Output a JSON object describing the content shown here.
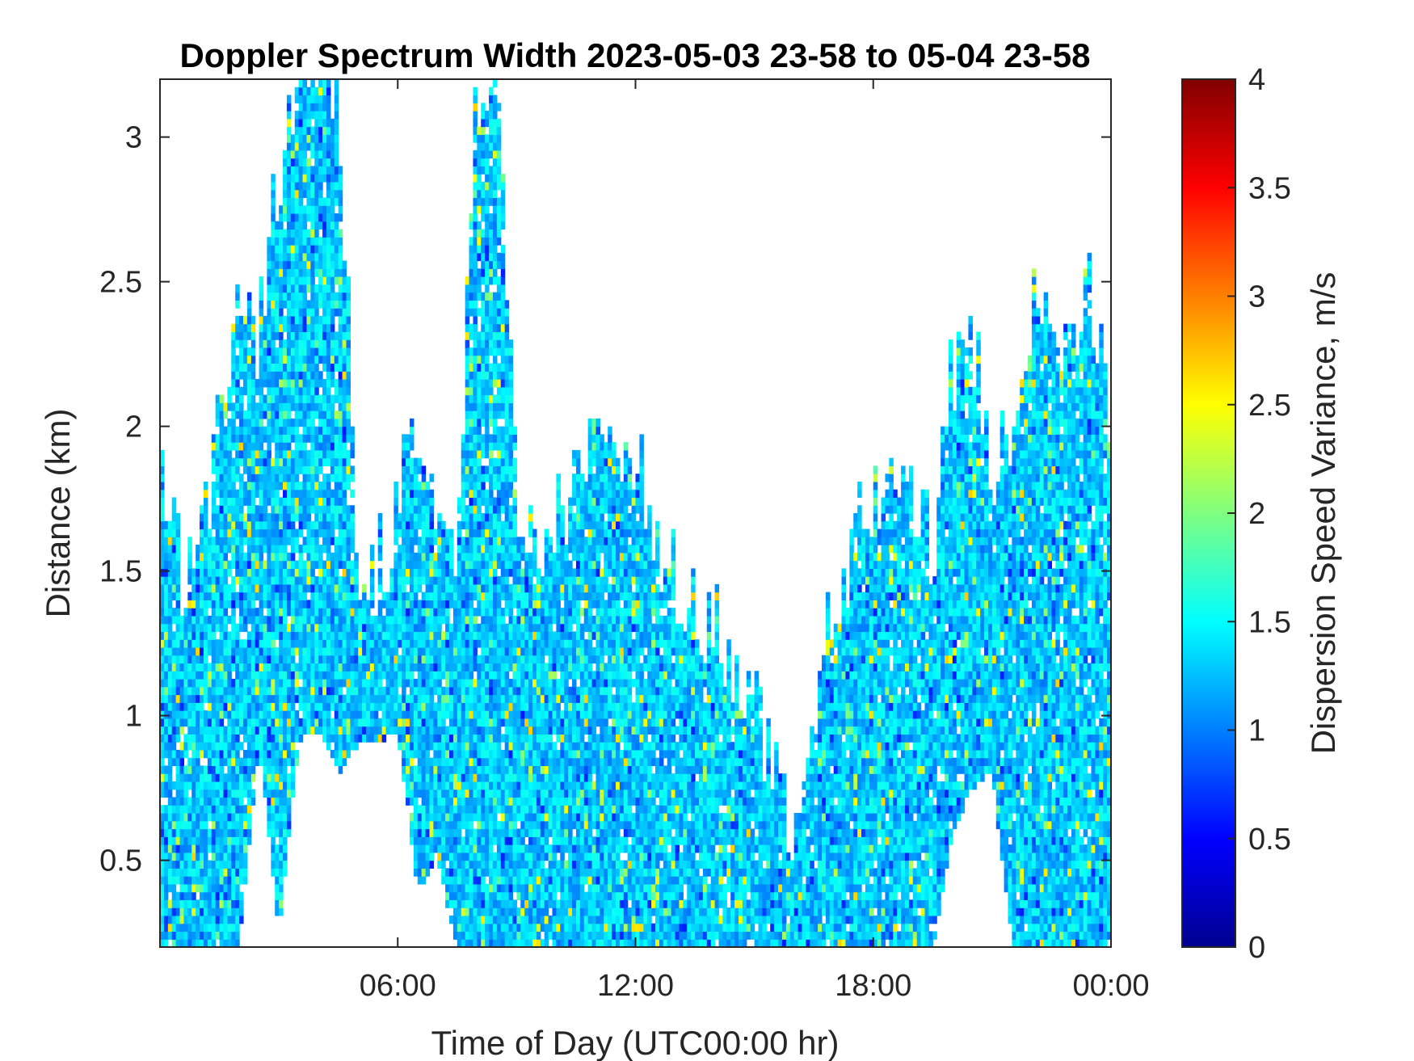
{
  "chart_data": {
    "type": "heatmap",
    "title": "Doppler Spectrum Width 2023-05-03 23-58 to 05-04 23-58",
    "xlabel": "Time of Day (UTC00:00 hr)",
    "ylabel": "Distance (km)",
    "colorbar_label": "Dispersion Speed Variance, m/s",
    "colormap": "jet",
    "xlim": [
      0,
      24
    ],
    "ylim": [
      0.2,
      3.2
    ],
    "clim": [
      0,
      4
    ],
    "x_ticks": [
      6,
      12,
      18,
      24
    ],
    "x_tick_labels": [
      "06:00",
      "12:00",
      "18:00",
      "00:00"
    ],
    "y_ticks": [
      0.5,
      1,
      1.5,
      2,
      2.5,
      3
    ],
    "y_tick_labels": [
      "0.5",
      "1",
      "1.5",
      "2",
      "2.5",
      "3"
    ],
    "colorbar_ticks": [
      0,
      0.5,
      1,
      1.5,
      2,
      2.5,
      3,
      3.5,
      4
    ],
    "colorbar_tick_labels": [
      "0",
      "0.5",
      "1",
      "1.5",
      "2",
      "2.5",
      "3",
      "3.5",
      "4"
    ],
    "typical_value": 1.3,
    "echo_top_km": {
      "x_hours": [
        0,
        0.5,
        1,
        1.5,
        2,
        2.5,
        3,
        3.5,
        4,
        4.5,
        5,
        5.5,
        6,
        6.5,
        7,
        7.5,
        8,
        8.5,
        9,
        9.5,
        10,
        10.5,
        11,
        11.5,
        12,
        12.5,
        13,
        13.5,
        14,
        14.5,
        15,
        15.5,
        16,
        16.5,
        17,
        17.5,
        18,
        18.5,
        19,
        19.5,
        20,
        20.5,
        21,
        21.5,
        22,
        22.5,
        23,
        23.5,
        24
      ],
      "top": [
        1.9,
        1.5,
        1.5,
        2.0,
        2.5,
        2.3,
        2.9,
        3.2,
        3.2,
        3.2,
        1.5,
        1.5,
        1.7,
        2.0,
        1.7,
        1.5,
        3.2,
        3.2,
        1.8,
        1.6,
        1.7,
        1.8,
        1.9,
        1.8,
        1.9,
        1.6,
        1.5,
        1.4,
        1.3,
        1.2,
        1.0,
        0.8,
        0.6,
        1.0,
        1.4,
        1.6,
        1.7,
        1.8,
        1.7,
        1.6,
        2.2,
        2.3,
        1.8,
        2.0,
        2.4,
        2.4,
        2.3,
        2.5,
        1.9
      ],
      "bottom": [
        0.2,
        0.2,
        0.2,
        0.2,
        0.2,
        0.9,
        0.25,
        0.9,
        0.95,
        0.8,
        0.9,
        0.9,
        0.95,
        0.4,
        0.5,
        0.2,
        0.2,
        0.2,
        0.2,
        0.2,
        0.2,
        0.2,
        0.2,
        0.2,
        0.2,
        0.2,
        0.2,
        0.2,
        0.2,
        0.2,
        0.2,
        0.2,
        0.2,
        0.2,
        0.2,
        0.2,
        0.2,
        0.2,
        0.2,
        0.2,
        0.6,
        0.75,
        0.8,
        0.2,
        0.2,
        0.2,
        0.2,
        0.2,
        0.2
      ]
    }
  }
}
